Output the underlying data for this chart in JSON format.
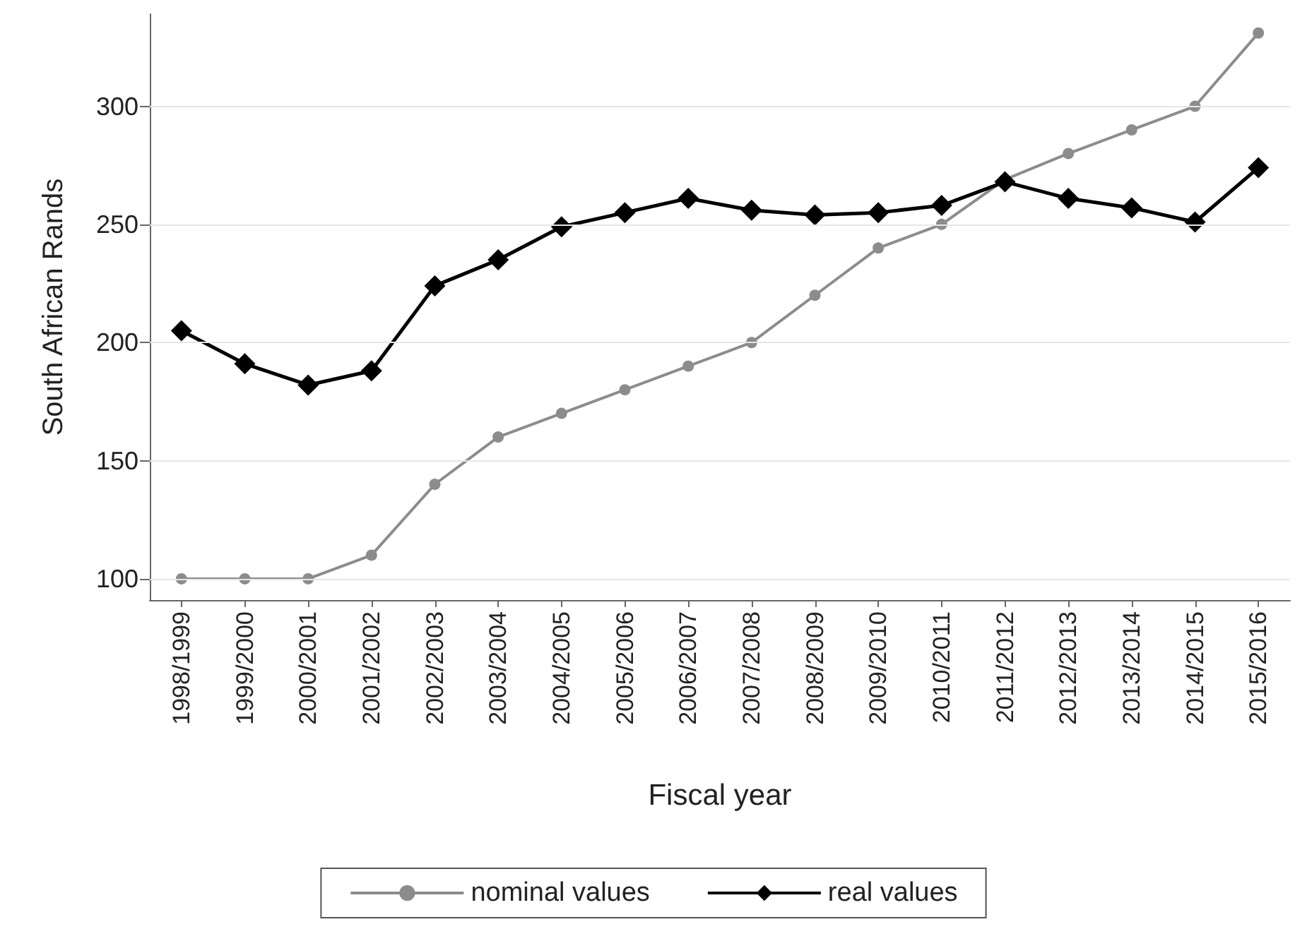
{
  "chart_data": {
    "type": "line",
    "xlabel": "Fiscal year",
    "ylabel": "South African Rands",
    "categories": [
      "1998/1999",
      "1999/2000",
      "2000/2001",
      "2001/2002",
      "2002/2003",
      "2003/2004",
      "2004/2005",
      "2005/2006",
      "2006/2007",
      "2007/2008",
      "2008/2009",
      "2009/2010",
      "2010/2011",
      "2011/2012",
      "2012/2013",
      "2013/2014",
      "2014/2015",
      "2015/2016"
    ],
    "series": [
      {
        "name": "nominal values",
        "color": "#8c8c8c",
        "marker": "circle",
        "values": [
          100,
          100,
          100,
          110,
          140,
          160,
          170,
          180,
          190,
          200,
          220,
          240,
          250,
          269,
          280,
          290,
          300,
          331
        ]
      },
      {
        "name": "real values",
        "color": "#000000",
        "marker": "diamond",
        "values": [
          205,
          191,
          182,
          188,
          224,
          235,
          249,
          255,
          261,
          256,
          254,
          255,
          258,
          268,
          261,
          257,
          251,
          274
        ]
      }
    ],
    "ylim": [
      91,
      339
    ],
    "yticks": [
      100,
      150,
      200,
      250,
      300
    ],
    "grid": "y",
    "legend": "bottom",
    "line_style": "solid"
  }
}
